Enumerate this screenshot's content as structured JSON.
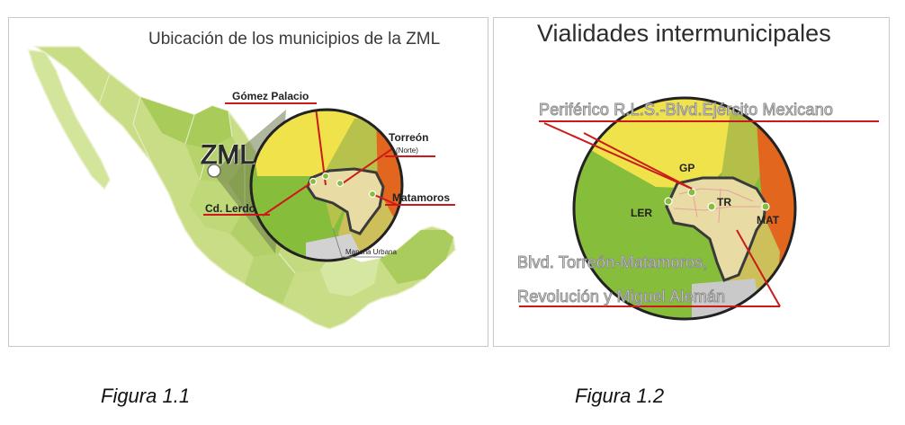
{
  "figure1": {
    "title": "Ubicación de los municipios de la ZML",
    "badge": "ZML",
    "labels": {
      "gomez_palacio": "Gómez Palacio",
      "torreon": "Torreón",
      "torreon_norte": "(Norte)",
      "matamoros": "Matamoros",
      "cd_lerdo": "Cd. Lerdo",
      "mancha_urbana": "Mancha Urbana"
    },
    "caption": "Figura 1.1"
  },
  "figure2": {
    "title": "Vialidades intermunicipales",
    "road1": "Periférico R.L.S.-Blvd.Ejército Mexicano",
    "road2_line1": "Blvd. Torreón-Matamoros,",
    "road2_line2": "Revolución y Miguel Alemán",
    "labels": {
      "gp": "GP",
      "ler": "LER",
      "tr": "TR",
      "mat": "MAT"
    },
    "caption": "Figura 1.2"
  },
  "colors": {
    "map_green": "#c7dd83",
    "green": "#86bd3b",
    "yellow": "#efe14a",
    "orange": "#e3661e",
    "road_red": "#cc1a1a"
  }
}
